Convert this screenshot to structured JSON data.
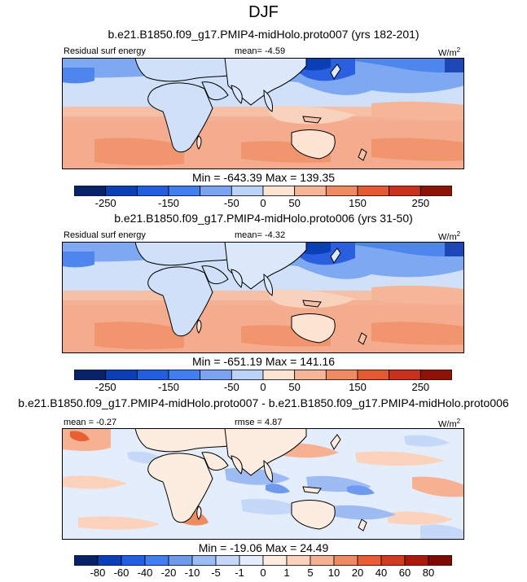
{
  "figure_title": "DJF",
  "panels": [
    {
      "case_title": "b.e21.B1850.f09_g17.PMIP4-midHolo.proto007 (yrs 182-201)",
      "variable": "Residual surf energy",
      "mean_label": "mean=",
      "mean_value": "-4.59",
      "units": "W/m",
      "units_sup": "2",
      "minmax": "Min = -643.39 Max = 139.35",
      "colorbar_ticks": [
        "-250",
        "-150",
        "-50",
        "0",
        "50",
        "150",
        "250"
      ]
    },
    {
      "case_title": "b.e21.B1850.f09_g17.PMIP4-midHolo.proto006 (yrs 31-50)",
      "variable": "Residual surf energy",
      "mean_label": "mean=",
      "mean_value": "-4.32",
      "units": "W/m",
      "units_sup": "2",
      "minmax": "Min = -651.19 Max = 141.16",
      "colorbar_ticks": [
        "-250",
        "-150",
        "-50",
        "0",
        "50",
        "150",
        "250"
      ]
    },
    {
      "case_title": "b.e21.B1850.f09_g17.PMIP4-midHolo.proto007 - b.e21.B1850.f09_g17.PMIP4-midHolo.proto006",
      "mean_label": "mean =",
      "mean_value": "-0.27",
      "rmse_label": "rmse =",
      "rmse_value": "4.87",
      "units": "W/m",
      "units_sup": "2",
      "minmax": "Min = -19.06 Max = 24.49",
      "colorbar_ticks": [
        "-80",
        "-60",
        "-40",
        "-20",
        "-10",
        "-5",
        "-1",
        "0",
        "1",
        "5",
        "10",
        "20",
        "40",
        "60",
        "80"
      ]
    }
  ],
  "colors": {
    "cb12": [
      "#08216b",
      "#0b3fb6",
      "#1f5fe0",
      "#3f7ff0",
      "#7aa4f2",
      "#bcd3f8",
      "#fde4d2",
      "#f7b597",
      "#f08a60",
      "#e35a30",
      "#c8321c",
      "#8e1206"
    ],
    "cb16": [
      "#08216b",
      "#0b3fb6",
      "#1f5fe0",
      "#3f7ff0",
      "#6e99ee",
      "#9ebcf4",
      "#c6d8f8",
      "#e4edfb",
      "#fdece0",
      "#fbd3bd",
      "#f6b193",
      "#f08a60",
      "#e85f34",
      "#d03a1e",
      "#a81a0a",
      "#7c0c03"
    ]
  },
  "chart_data": [
    {
      "type": "heatmap",
      "title": "b.e21.B1850.f09_g17.PMIP4-midHolo.proto007 (yrs 182-201)",
      "variable": "Residual surf energy",
      "units": "W/m2",
      "mean": -4.59,
      "min": -643.39,
      "max": 139.35,
      "colorbar_levels": [
        -250,
        -200,
        -150,
        -100,
        -50,
        -25,
        0,
        25,
        50,
        100,
        150,
        200,
        250
      ],
      "colorbar_tick_labels": [
        -250,
        -150,
        -50,
        0,
        50,
        150,
        250
      ]
    },
    {
      "type": "heatmap",
      "title": "b.e21.B1850.f09_g17.PMIP4-midHolo.proto006 (yrs 31-50)",
      "variable": "Residual surf energy",
      "units": "W/m2",
      "mean": -4.32,
      "min": -651.19,
      "max": 141.16,
      "colorbar_levels": [
        -250,
        -200,
        -150,
        -100,
        -50,
        -25,
        0,
        25,
        50,
        100,
        150,
        200,
        250
      ],
      "colorbar_tick_labels": [
        -250,
        -150,
        -50,
        0,
        50,
        150,
        250
      ]
    },
    {
      "type": "heatmap",
      "title": "b.e21.B1850.f09_g17.PMIP4-midHolo.proto007 - b.e21.B1850.f09_g17.PMIP4-midHolo.proto006",
      "units": "W/m2",
      "mean": -0.27,
      "rmse": 4.87,
      "min": -19.06,
      "max": 24.49,
      "colorbar_levels": [
        -80,
        -60,
        -40,
        -20,
        -10,
        -5,
        -1,
        0,
        1,
        5,
        10,
        20,
        40,
        60,
        80
      ],
      "colorbar_tick_labels": [
        -80,
        -60,
        -40,
        -20,
        -10,
        -5,
        -1,
        0,
        1,
        5,
        10,
        20,
        40,
        60,
        80
      ]
    }
  ]
}
